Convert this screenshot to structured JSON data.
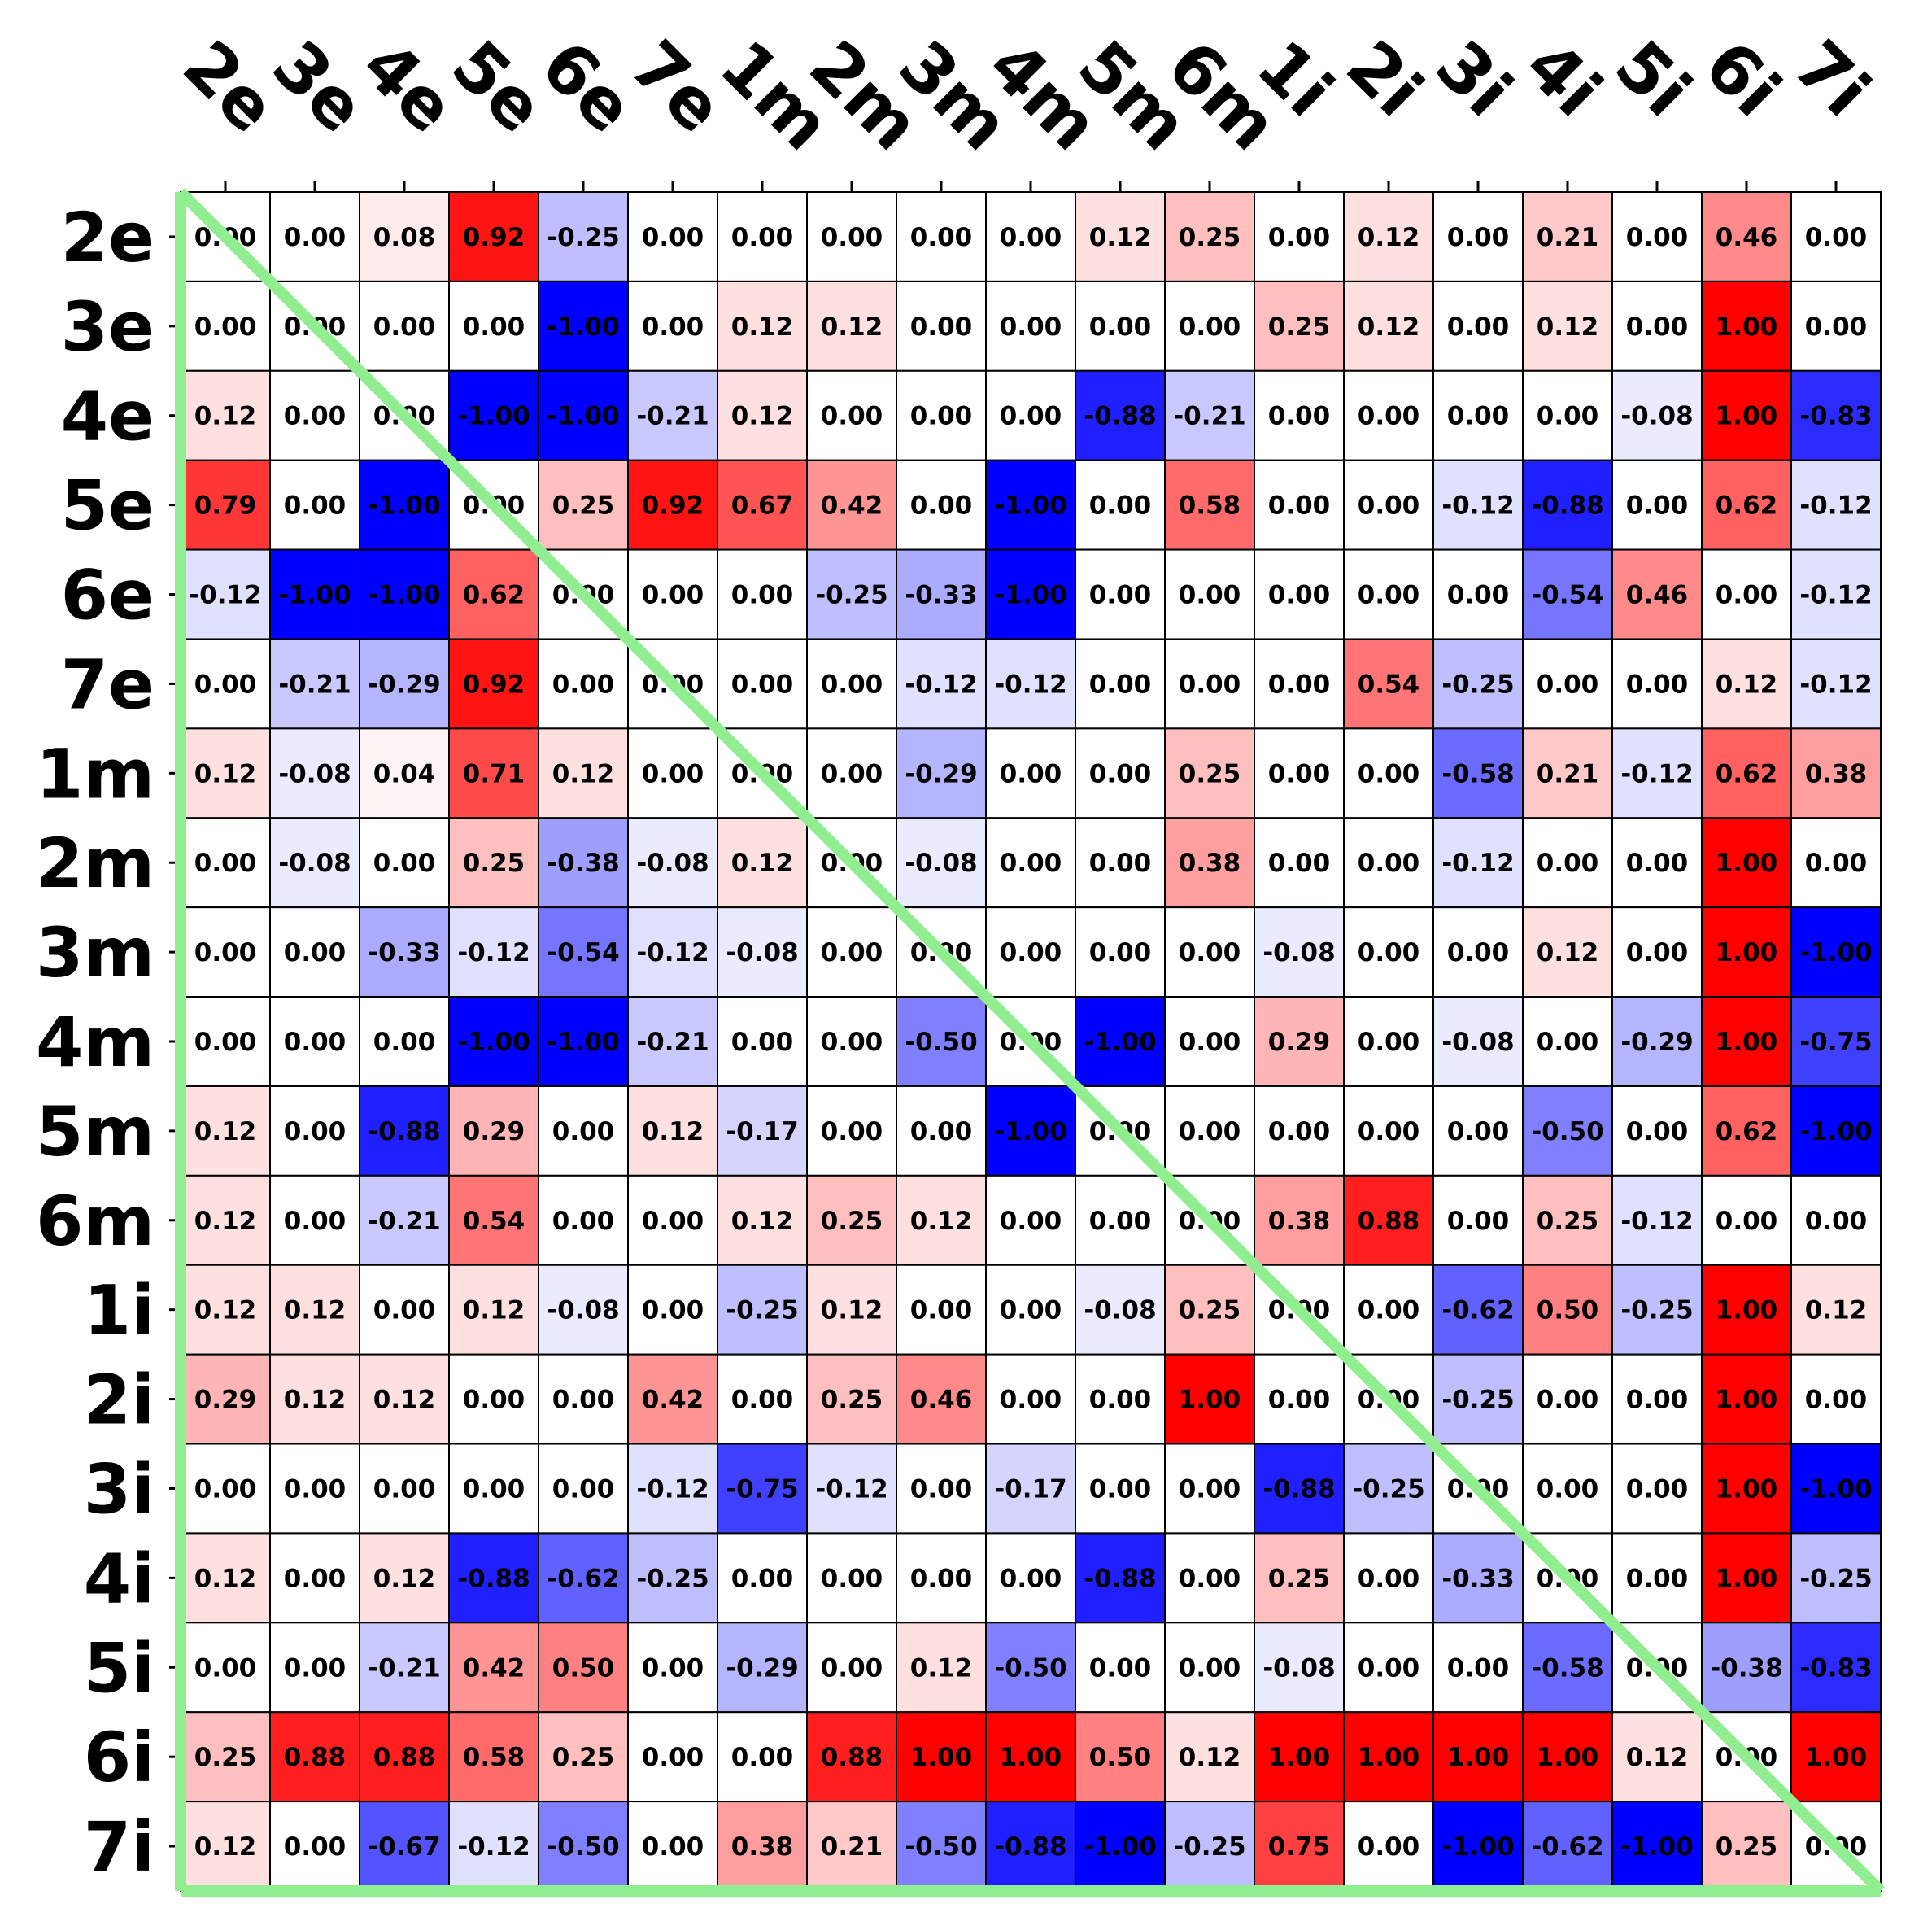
{
  "chart_data": {
    "type": "heatmap",
    "title": "",
    "xlabel": "",
    "ylabel": "",
    "x_categories": [
      "2e",
      "3e",
      "4e",
      "5e",
      "6e",
      "7e",
      "1m",
      "2m",
      "3m",
      "4m",
      "5m",
      "6m",
      "1i",
      "2i",
      "3i",
      "4i",
      "5i",
      "6i",
      "7i"
    ],
    "y_categories": [
      "2e",
      "3e",
      "4e",
      "5e",
      "6e",
      "7e",
      "1m",
      "2m",
      "3m",
      "4m",
      "5m",
      "6m",
      "1i",
      "2i",
      "3i",
      "4i",
      "5i",
      "6i",
      "7i"
    ],
    "value_range": [
      -1,
      1
    ],
    "colormap": "bwr",
    "colors": {
      "negative": "#0000ff",
      "zero": "#ffffff",
      "positive": "#ff0000",
      "diagonal": "#90ee90",
      "cell_border": "#000000"
    },
    "values": [
      [
        0.0,
        0.0,
        0.08,
        0.92,
        -0.25,
        0.0,
        0.0,
        0.0,
        0.0,
        0.0,
        0.12,
        0.25,
        0.0,
        0.12,
        0.0,
        0.21,
        0.0,
        0.46,
        0.0
      ],
      [
        0.0,
        0.0,
        0.0,
        0.0,
        -1.0,
        0.0,
        0.12,
        0.12,
        0.0,
        0.0,
        0.0,
        0.0,
        0.25,
        0.12,
        0.0,
        0.12,
        0.0,
        1.0,
        0.0
      ],
      [
        0.12,
        0.0,
        0.0,
        -1.0,
        -1.0,
        -0.21,
        0.12,
        0.0,
        0.0,
        0.0,
        -0.88,
        -0.21,
        0.0,
        0.0,
        0.0,
        0.0,
        -0.08,
        1.0,
        -0.83
      ],
      [
        0.79,
        0.0,
        -1.0,
        0.0,
        0.25,
        0.92,
        0.67,
        0.42,
        0.0,
        -1.0,
        0.0,
        0.58,
        0.0,
        0.0,
        -0.12,
        -0.88,
        0.0,
        0.62,
        -0.12
      ],
      [
        -0.12,
        -1.0,
        -1.0,
        0.62,
        0.0,
        0.0,
        0.0,
        -0.25,
        -0.33,
        -1.0,
        0.0,
        0.0,
        0.0,
        0.0,
        0.0,
        -0.54,
        0.46,
        0.0,
        -0.12
      ],
      [
        0.0,
        -0.21,
        -0.29,
        0.92,
        0.0,
        0.0,
        0.0,
        0.0,
        -0.12,
        -0.12,
        0.0,
        0.0,
        0.0,
        0.54,
        -0.25,
        0.0,
        0.0,
        0.12,
        -0.12
      ],
      [
        0.12,
        -0.08,
        0.04,
        0.71,
        0.12,
        0.0,
        0.0,
        0.0,
        -0.29,
        0.0,
        0.0,
        0.25,
        0.0,
        0.0,
        -0.58,
        0.21,
        -0.12,
        0.62,
        0.38
      ],
      [
        0.0,
        -0.08,
        0.0,
        0.25,
        -0.38,
        -0.08,
        0.12,
        0.0,
        -0.08,
        0.0,
        0.0,
        0.38,
        0.0,
        0.0,
        -0.12,
        0.0,
        0.0,
        1.0,
        0.0
      ],
      [
        0.0,
        0.0,
        -0.33,
        -0.12,
        -0.54,
        -0.12,
        -0.08,
        0.0,
        0.0,
        0.0,
        0.0,
        0.0,
        -0.08,
        0.0,
        0.0,
        0.12,
        0.0,
        1.0,
        -1.0
      ],
      [
        0.0,
        0.0,
        0.0,
        -1.0,
        -1.0,
        -0.21,
        0.0,
        0.0,
        -0.5,
        0.0,
        -1.0,
        0.0,
        0.29,
        0.0,
        -0.08,
        0.0,
        -0.29,
        1.0,
        -0.75
      ],
      [
        0.12,
        0.0,
        -0.88,
        0.29,
        0.0,
        0.12,
        -0.17,
        0.0,
        0.0,
        -1.0,
        0.0,
        0.0,
        0.0,
        0.0,
        0.0,
        -0.5,
        0.0,
        0.62,
        -1.0
      ],
      [
        0.12,
        0.0,
        -0.21,
        0.54,
        0.0,
        0.0,
        0.12,
        0.25,
        0.12,
        0.0,
        0.0,
        0.0,
        0.38,
        0.88,
        0.0,
        0.25,
        -0.12,
        0.0,
        0.0
      ],
      [
        0.12,
        0.12,
        0.0,
        0.12,
        -0.08,
        0.0,
        -0.25,
        0.12,
        0.0,
        0.0,
        -0.08,
        0.25,
        0.0,
        0.0,
        -0.62,
        0.5,
        -0.25,
        1.0,
        0.12
      ],
      [
        0.29,
        0.12,
        0.12,
        0.0,
        0.0,
        0.42,
        0.0,
        0.25,
        0.46,
        0.0,
        0.0,
        1.0,
        0.0,
        0.0,
        -0.25,
        0.0,
        0.0,
        1.0,
        0.0
      ],
      [
        0.0,
        0.0,
        0.0,
        0.0,
        0.0,
        -0.12,
        -0.75,
        -0.12,
        0.0,
        -0.17,
        0.0,
        0.0,
        -0.88,
        -0.25,
        0.0,
        0.0,
        0.0,
        1.0,
        -1.0
      ],
      [
        0.12,
        0.0,
        0.12,
        -0.88,
        -0.62,
        -0.25,
        0.0,
        0.0,
        0.0,
        0.0,
        -0.88,
        0.0,
        0.25,
        0.0,
        -0.33,
        0.0,
        0.0,
        1.0,
        -0.25
      ],
      [
        0.0,
        0.0,
        -0.21,
        0.42,
        0.5,
        0.0,
        -0.29,
        0.0,
        0.12,
        -0.5,
        0.0,
        0.0,
        -0.08,
        0.0,
        0.0,
        -0.58,
        0.0,
        -0.38,
        -0.83
      ],
      [
        0.25,
        0.88,
        0.88,
        0.58,
        0.25,
        0.0,
        0.0,
        0.88,
        1.0,
        1.0,
        0.5,
        0.12,
        1.0,
        1.0,
        1.0,
        1.0,
        0.12,
        0.0,
        1.0
      ],
      [
        0.12,
        0.0,
        -0.67,
        -0.12,
        -0.5,
        0.0,
        0.38,
        0.21,
        -0.5,
        -0.88,
        -1.0,
        -0.25,
        0.75,
        0.0,
        -1.0,
        -0.62,
        -1.0,
        0.25,
        0.0
      ]
    ],
    "value_format": "2 decimals",
    "grid": true,
    "legend": "none",
    "overlay": "diagonal line from top-left corner to bottom-right corner, with left and bottom border lines (lower triangle outline)"
  }
}
